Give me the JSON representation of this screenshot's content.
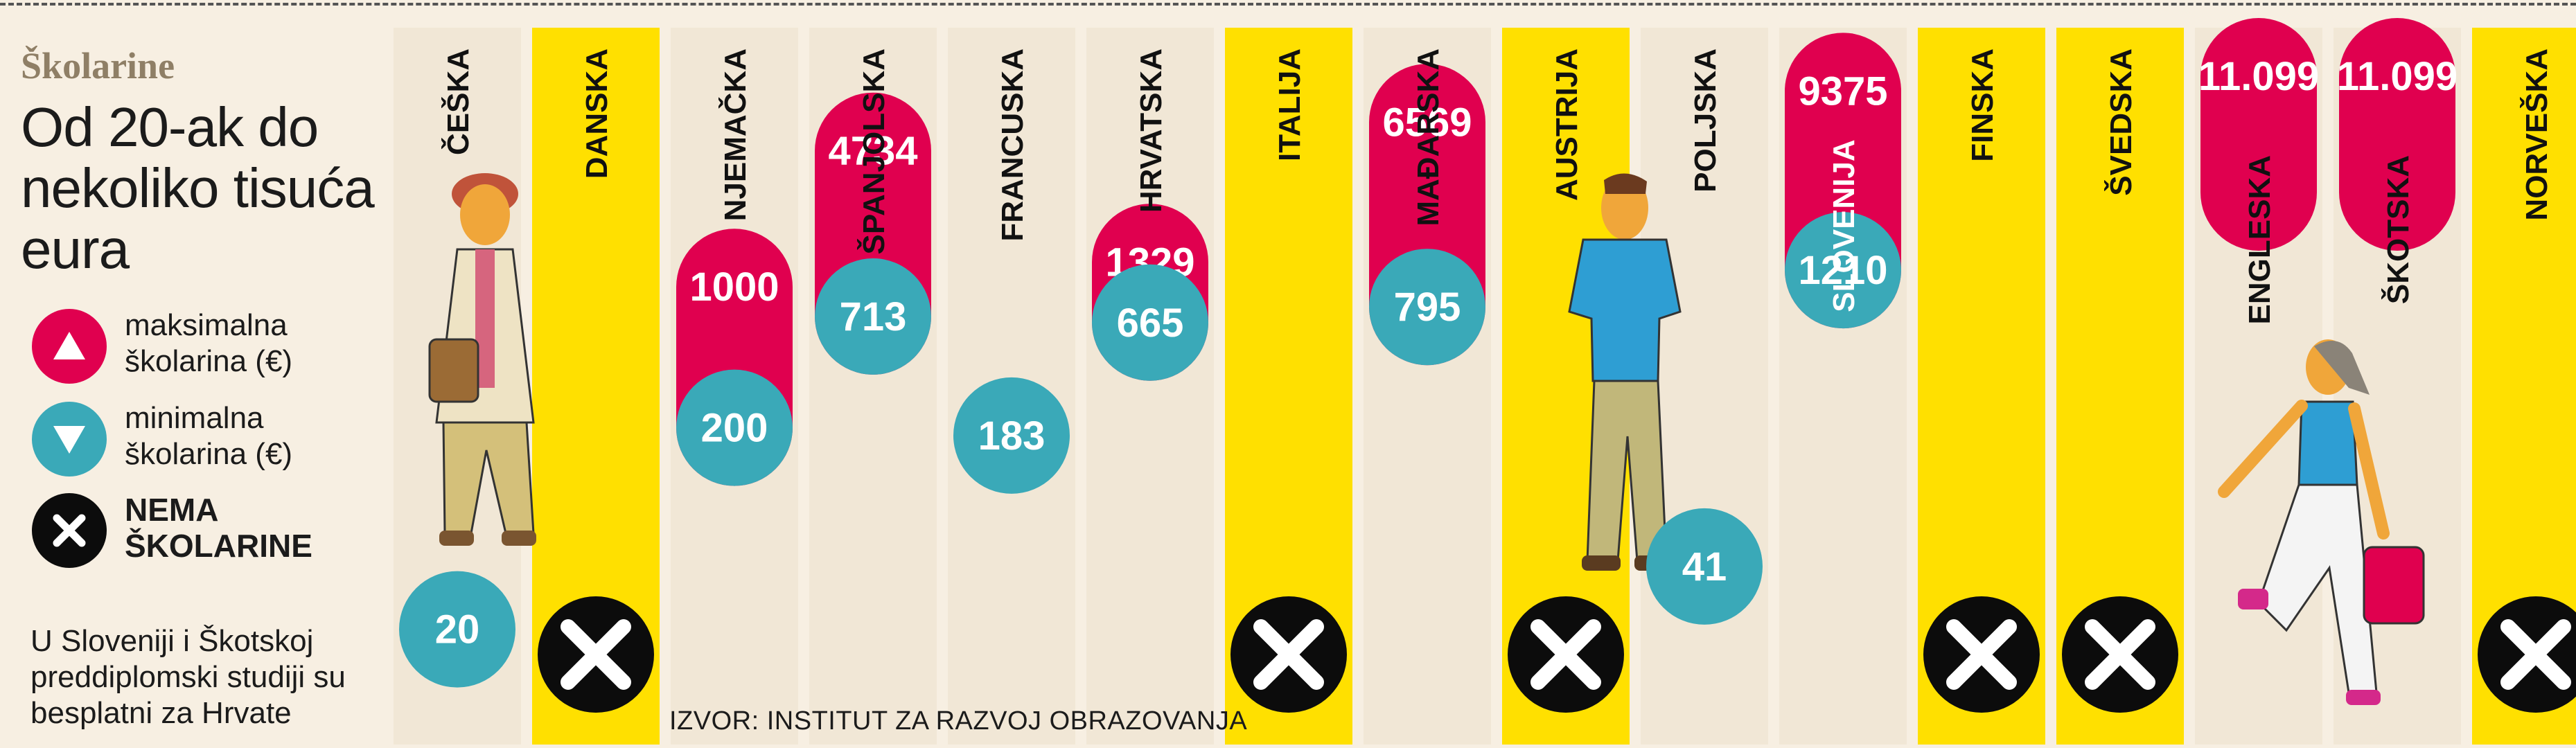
{
  "header": {
    "kicker": "Školarine",
    "headline": "Od 20-ak do nekoliko tisuća eura"
  },
  "legend": {
    "max_label": "maksimalna školarina (€)",
    "min_label": "minimalna školarina (€)",
    "none_label": "NEMA ŠKOLARINE"
  },
  "note": "U Sloveniji i Škotskoj preddiplomski studiji su besplatni za Hrvate",
  "source": "IZVOR: INSTITUT ZA RAZVOJ OBRAZOVANJA",
  "colors": {
    "max": "#e0004f",
    "min": "#3aa9b8",
    "none": "#0c0c0c",
    "yellow_column": "#ffe000",
    "light_column": "#f1e7d6",
    "background": "#f7efe2"
  },
  "chart_data": {
    "type": "bar",
    "categories": [
      "ČEŠKA",
      "DANSKA",
      "NJEMAČKA",
      "ŠPANJOLSKA",
      "FRANCUSKA",
      "HRVATSKA",
      "ITALIJA",
      "MAĐARSKA",
      "AUSTRIJA",
      "POLJSKA",
      "SLOVENIJA",
      "FINSKA",
      "ŠVEDSKA",
      "ENGLESKA",
      "ŠKOTSKA",
      "NORVEŠKA"
    ],
    "no_fee": [
      false,
      true,
      false,
      false,
      false,
      false,
      true,
      false,
      true,
      false,
      false,
      true,
      true,
      false,
      false,
      true
    ],
    "series": [
      {
        "name": "maksimalna školarina (€)",
        "values": [
          null,
          null,
          1000,
          4734,
          null,
          1329,
          null,
          6569,
          null,
          null,
          9375,
          null,
          null,
          11099,
          11099,
          null
        ]
      },
      {
        "name": "minimalna školarina (€)",
        "values": [
          20,
          null,
          200,
          713,
          183,
          665,
          null,
          795,
          null,
          41,
          1210,
          null,
          null,
          null,
          null,
          null
        ]
      }
    ],
    "value_labels": {
      "max": [
        null,
        null,
        "1000",
        "4734",
        null,
        "1329",
        null,
        "6569",
        null,
        null,
        "9375",
        null,
        null,
        "11.099",
        "11.099",
        null
      ],
      "min": [
        "20",
        null,
        "200",
        "713",
        "183",
        "665",
        null,
        "795",
        null,
        "41",
        "1210",
        null,
        null,
        null,
        null,
        null
      ]
    }
  }
}
